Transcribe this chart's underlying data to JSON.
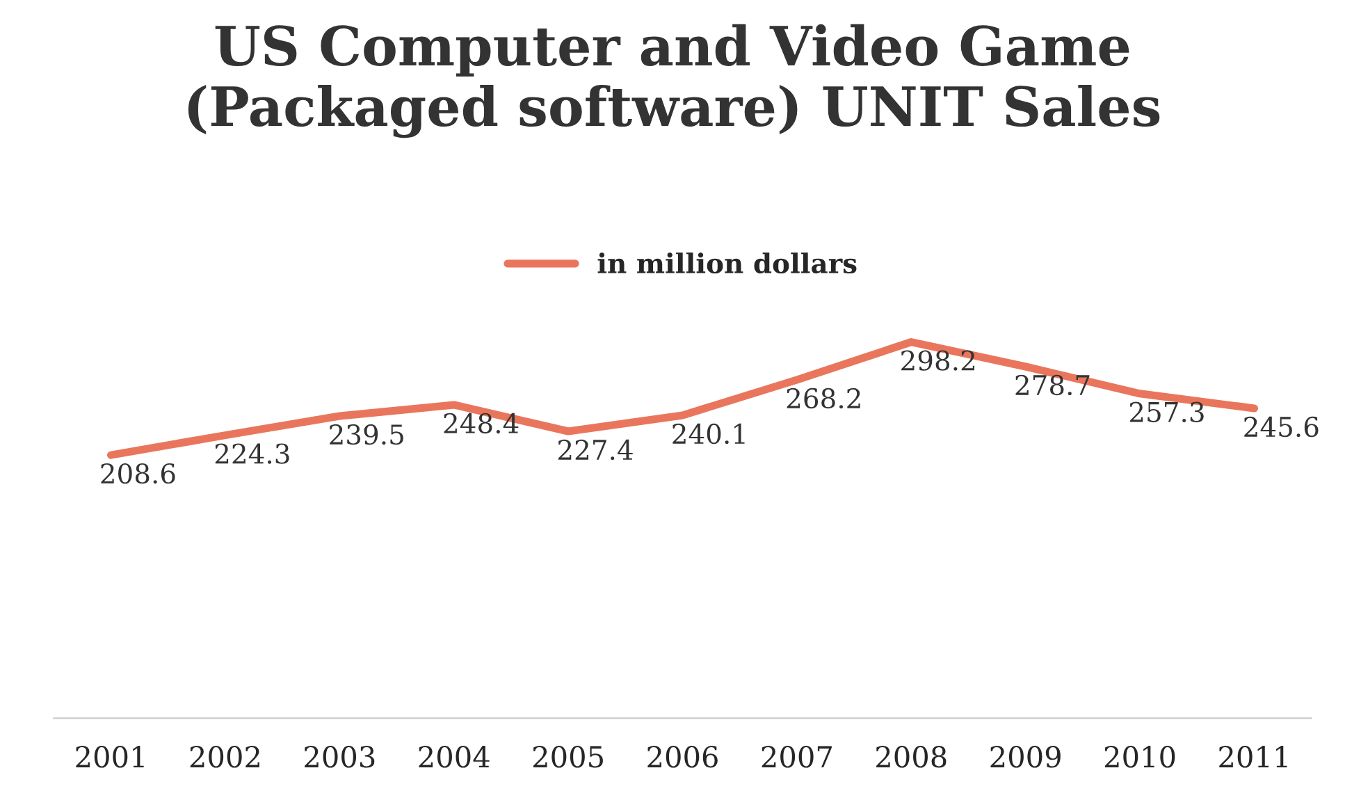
{
  "chart_data": {
    "type": "line",
    "title": "US Computer and Video Game\n(Packaged software) UNIT Sales",
    "categories": [
      "2001",
      "2002",
      "2003",
      "2004",
      "2005",
      "2006",
      "2007",
      "2008",
      "2009",
      "2010",
      "2011"
    ],
    "series": [
      {
        "name": "in million dollars",
        "color": "#e9765c",
        "values": [
          208.6,
          224.3,
          239.5,
          248.4,
          227.4,
          240.1,
          268.2,
          298.2,
          278.7,
          257.3,
          245.6
        ]
      }
    ],
    "tick_labels": "x",
    "data_labels": true,
    "legend": "top",
    "grid": false,
    "marker": "none",
    "line_style": "solid"
  }
}
